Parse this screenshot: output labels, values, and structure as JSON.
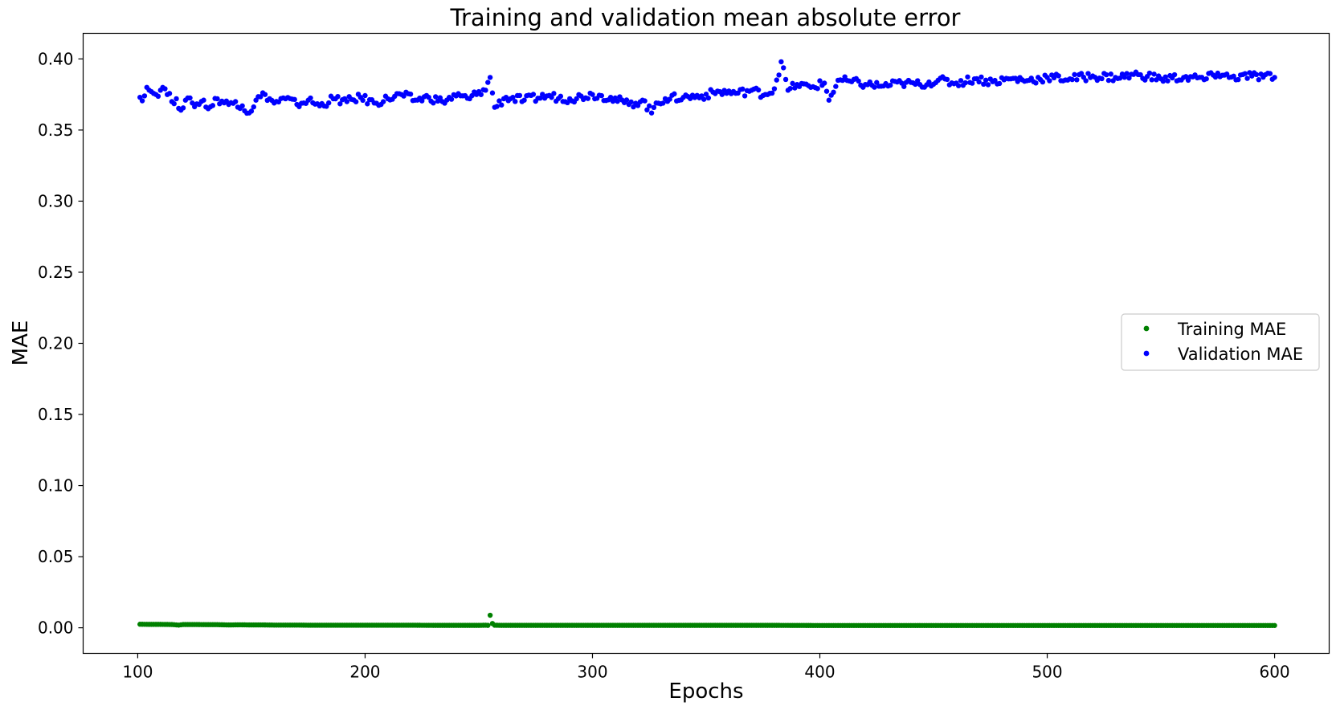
{
  "chart_data": {
    "type": "scatter",
    "title": "Training and validation mean absolute error",
    "xlabel": "Epochs",
    "ylabel": "MAE",
    "xlim": [
      76,
      624
    ],
    "ylim": [
      -0.018,
      0.418
    ],
    "xticks": [
      100,
      200,
      300,
      400,
      500,
      600
    ],
    "xtick_labels": [
      "100",
      "200",
      "300",
      "400",
      "500",
      "600"
    ],
    "yticks": [
      0.0,
      0.05,
      0.1,
      0.15,
      0.2,
      0.25,
      0.3,
      0.35,
      0.4
    ],
    "ytick_labels": [
      "0.00",
      "0.05",
      "0.10",
      "0.15",
      "0.20",
      "0.25",
      "0.30",
      "0.35",
      "0.40"
    ],
    "grid": false,
    "legend_position": "center-right",
    "series": [
      {
        "name": "Training MAE",
        "color": "#008000",
        "x": [
          101,
          105,
          110,
          115,
          118,
          120,
          125,
          130,
          135,
          140,
          145,
          150,
          155,
          160,
          165,
          170,
          175,
          180,
          190,
          200,
          210,
          220,
          230,
          240,
          250,
          253,
          254,
          255,
          256,
          257,
          260,
          270,
          280,
          300,
          320,
          350,
          380,
          400,
          430,
          450,
          480,
          500,
          520,
          550,
          580,
          600
        ],
        "y": [
          0.0025,
          0.0024,
          0.0024,
          0.0023,
          0.0019,
          0.0023,
          0.0023,
          0.0022,
          0.0022,
          0.002,
          0.0021,
          0.002,
          0.002,
          0.0019,
          0.0019,
          0.0019,
          0.0018,
          0.0018,
          0.0018,
          0.0018,
          0.0018,
          0.0018,
          0.0017,
          0.0017,
          0.0017,
          0.0018,
          0.0017,
          0.0088,
          0.003,
          0.0018,
          0.0017,
          0.0017,
          0.0017,
          0.0017,
          0.0017,
          0.0017,
          0.0017,
          0.0016,
          0.0016,
          0.0016,
          0.0016,
          0.0016,
          0.0016,
          0.0016,
          0.0016,
          0.0016
        ]
      },
      {
        "name": "Validation MAE",
        "color": "#0000ff",
        "x": [
          101,
          103,
          104,
          106,
          108,
          110,
          112,
          115,
          117,
          119,
          121,
          124,
          127,
          129,
          131,
          135,
          140,
          143,
          146,
          149,
          152,
          156,
          160,
          165,
          170,
          175,
          180,
          186,
          192,
          198,
          204,
          210,
          216,
          222,
          228,
          234,
          240,
          246,
          250,
          253,
          255,
          257,
          262,
          270,
          280,
          290,
          300,
          308,
          316,
          322,
          326,
          328,
          332,
          340,
          348,
          356,
          364,
          370,
          376,
          380,
          383,
          386,
          390,
          396,
          402,
          404,
          408,
          414,
          420,
          428,
          436,
          444,
          452,
          460,
          468,
          476,
          484,
          492,
          500,
          510,
          520,
          530,
          540,
          550,
          560,
          570,
          575,
          580,
          590,
          600
        ],
        "y": [
          0.373,
          0.374,
          0.38,
          0.377,
          0.375,
          0.378,
          0.379,
          0.37,
          0.372,
          0.364,
          0.371,
          0.369,
          0.368,
          0.371,
          0.365,
          0.372,
          0.368,
          0.37,
          0.367,
          0.362,
          0.371,
          0.375,
          0.369,
          0.372,
          0.368,
          0.371,
          0.367,
          0.372,
          0.37,
          0.373,
          0.369,
          0.372,
          0.375,
          0.371,
          0.373,
          0.37,
          0.374,
          0.372,
          0.377,
          0.378,
          0.387,
          0.366,
          0.373,
          0.371,
          0.374,
          0.372,
          0.375,
          0.373,
          0.368,
          0.371,
          0.362,
          0.369,
          0.372,
          0.373,
          0.374,
          0.377,
          0.376,
          0.378,
          0.375,
          0.379,
          0.398,
          0.378,
          0.382,
          0.38,
          0.383,
          0.371,
          0.385,
          0.384,
          0.382,
          0.381,
          0.383,
          0.382,
          0.385,
          0.383,
          0.386,
          0.384,
          0.386,
          0.385,
          0.387,
          0.386,
          0.388,
          0.387,
          0.389,
          0.386,
          0.387,
          0.386,
          0.39,
          0.387,
          0.388,
          0.387
        ]
      }
    ]
  }
}
